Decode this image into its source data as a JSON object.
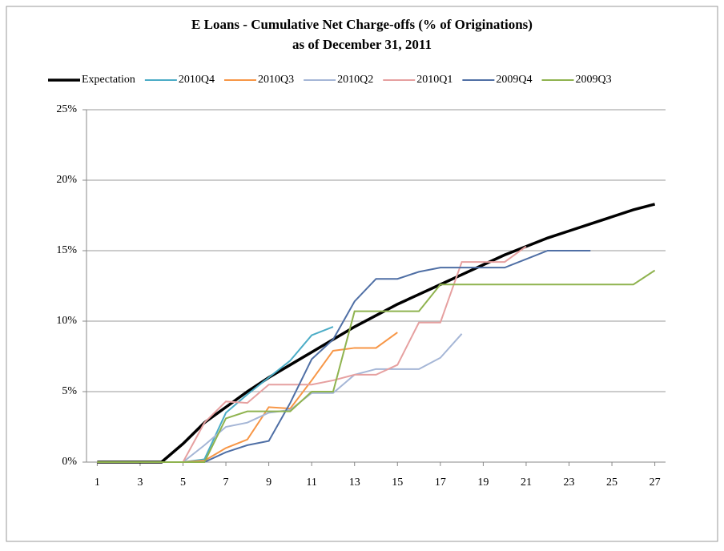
{
  "chart_data": {
    "type": "line",
    "title": "E Loans - Cumulative Net Charge-offs (% of Originations)",
    "subtitle": "as of December 31, 2011",
    "x": [
      1,
      2,
      3,
      4,
      5,
      6,
      7,
      8,
      9,
      10,
      11,
      12,
      13,
      14,
      15,
      16,
      17,
      18,
      19,
      20,
      21,
      22,
      23,
      24,
      25,
      26,
      27
    ],
    "xlim": [
      0.5,
      27.5
    ],
    "xticks": [
      1,
      3,
      5,
      7,
      9,
      11,
      13,
      15,
      17,
      19,
      21,
      23,
      25,
      27
    ],
    "ylim": [
      0,
      25
    ],
    "yticks": [
      {
        "value": 0,
        "label": "0%"
      },
      {
        "value": 5,
        "label": "5%"
      },
      {
        "value": 10,
        "label": "10%"
      },
      {
        "value": 15,
        "label": "15%"
      },
      {
        "value": 20,
        "label": "20%"
      },
      {
        "value": 25,
        "label": "25%"
      }
    ],
    "grid": true,
    "legend": "top",
    "series": [
      {
        "name": "Expectation",
        "color": "#000000",
        "width": 3.5,
        "values": [
          0,
          0,
          0,
          0,
          1.3,
          2.8,
          3.9,
          5.0,
          6.0,
          6.9,
          7.8,
          8.7,
          9.6,
          10.4,
          11.2,
          11.9,
          12.6,
          13.3,
          14.0,
          14.7,
          15.3,
          15.9,
          16.4,
          16.9,
          17.4,
          17.9,
          18.3
        ]
      },
      {
        "name": "2010Q4",
        "color": "#4bacc6",
        "width": 2,
        "values": [
          0,
          0,
          0,
          0,
          0,
          0.2,
          3.5,
          4.8,
          6.0,
          7.2,
          9.0,
          9.6,
          null,
          null,
          null,
          null,
          null,
          null,
          null,
          null,
          null,
          null,
          null,
          null,
          null,
          null,
          null
        ]
      },
      {
        "name": "2010Q3",
        "color": "#f79646",
        "width": 2,
        "values": [
          0,
          0,
          0,
          0,
          0,
          0.1,
          1.0,
          1.6,
          3.9,
          3.8,
          5.8,
          7.9,
          8.1,
          8.1,
          9.2,
          null,
          null,
          null,
          null,
          null,
          null,
          null,
          null,
          null,
          null,
          null,
          null
        ]
      },
      {
        "name": "2010Q2",
        "color": "#a5b6d6",
        "width": 2,
        "values": [
          0,
          0,
          0,
          0,
          0,
          1.2,
          2.5,
          2.8,
          3.5,
          3.7,
          4.9,
          4.9,
          6.2,
          6.6,
          6.6,
          6.6,
          7.4,
          9.1,
          null,
          null,
          null,
          null,
          null,
          null,
          null,
          null,
          null
        ]
      },
      {
        "name": "2010Q1",
        "color": "#e6a0a0",
        "width": 2,
        "values": [
          0,
          0,
          0,
          0,
          0,
          2.8,
          4.3,
          4.2,
          5.5,
          5.5,
          5.5,
          5.8,
          6.2,
          6.2,
          6.9,
          9.9,
          9.9,
          14.2,
          14.2,
          14.2,
          15.3,
          null,
          null,
          null,
          null,
          null,
          null
        ]
      },
      {
        "name": "2009Q4",
        "color": "#4f6fa5",
        "width": 2,
        "values": [
          0,
          0,
          0,
          0,
          0,
          0,
          0.7,
          1.2,
          1.5,
          4.2,
          7.3,
          8.7,
          11.4,
          13.0,
          13.0,
          13.5,
          13.8,
          13.8,
          13.8,
          13.8,
          14.4,
          15.0,
          15.0,
          15.0,
          null,
          null,
          null
        ]
      },
      {
        "name": "2009Q3",
        "color": "#8fb34f",
        "width": 2,
        "values": [
          0,
          0,
          0,
          0,
          0,
          0,
          3.1,
          3.6,
          3.6,
          3.6,
          5.0,
          5.0,
          10.7,
          10.7,
          10.7,
          10.7,
          12.6,
          12.6,
          12.6,
          12.6,
          12.6,
          12.6,
          12.6,
          12.6,
          12.6,
          12.6,
          13.6
        ]
      }
    ]
  }
}
